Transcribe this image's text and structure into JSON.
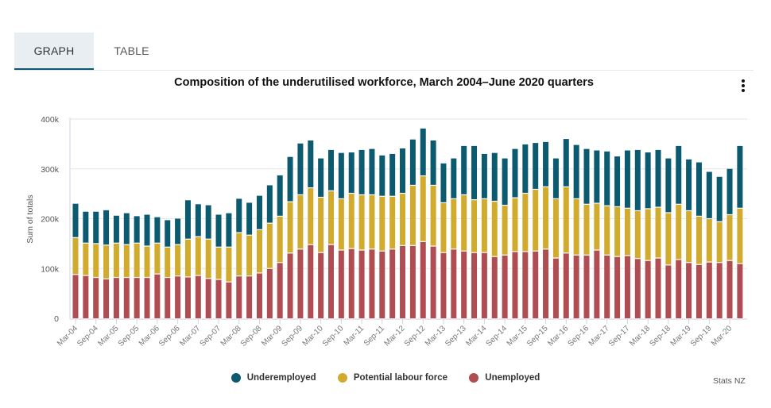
{
  "tabs": [
    {
      "label": "GRAPH",
      "active": true
    },
    {
      "label": "TABLE",
      "active": false
    }
  ],
  "menu_icon": "more-vertical-icon",
  "credit": "Stats NZ",
  "chart_data": {
    "type": "bar",
    "stacked": true,
    "title": "Composition of the underutilised workforce, March 2004–June 2020 quarters",
    "xlabel": "",
    "ylabel": "Sum of totals",
    "ylim": [
      0,
      400000
    ],
    "yticks": [
      {
        "value": 0,
        "label": "0"
      },
      {
        "value": 100000,
        "label": "100k"
      },
      {
        "value": 200000,
        "label": "200k"
      },
      {
        "value": 300000,
        "label": "300k"
      },
      {
        "value": 400000,
        "label": "400k"
      }
    ],
    "grid": true,
    "legend_position": "bottom",
    "categories": [
      "Mar-04",
      "Jun-04",
      "Sep-04",
      "Dec-04",
      "Mar-05",
      "Jun-05",
      "Sep-05",
      "Dec-05",
      "Mar-06",
      "Jun-06",
      "Sep-06",
      "Dec-06",
      "Mar-07",
      "Jun-07",
      "Sep-07",
      "Dec-07",
      "Mar-08",
      "Jun-08",
      "Sep-08",
      "Dec-08",
      "Mar-09",
      "Jun-09",
      "Sep-09",
      "Dec-09",
      "Mar-10",
      "Jun-10",
      "Sep-10",
      "Dec-10",
      "Mar-11",
      "Jun-11",
      "Sep-11",
      "Dec-11",
      "Mar-12",
      "Jun-12",
      "Sep-12",
      "Dec-12",
      "Mar-13",
      "Jun-13",
      "Sep-13",
      "Dec-13",
      "Mar-14",
      "Jun-14",
      "Sep-14",
      "Dec-14",
      "Mar-15",
      "Jun-15",
      "Sep-15",
      "Dec-15",
      "Mar-16",
      "Jun-16",
      "Sep-16",
      "Dec-16",
      "Mar-17",
      "Jun-17",
      "Sep-17",
      "Dec-17",
      "Mar-18",
      "Jun-18",
      "Sep-18",
      "Dec-18",
      "Mar-19",
      "Jun-19",
      "Sep-19",
      "Dec-19",
      "Mar-20",
      "Jun-20"
    ],
    "tick_labels": [
      "Mar-04",
      "Sep-04",
      "Mar-05",
      "Sep-05",
      "Mar-06",
      "Sep-06",
      "Mar-07",
      "Sep-07",
      "Mar-08",
      "Sep-08",
      "Mar-09",
      "Sep-09",
      "Mar-10",
      "Sep-10",
      "Mar-11",
      "Sep-11",
      "Mar-12",
      "Sep-12",
      "Mar-13",
      "Sep-13",
      "Mar-14",
      "Sep-14",
      "Mar-15",
      "Sep-15",
      "Mar-16",
      "Sep-16",
      "Mar-17",
      "Sep-17",
      "Mar-18",
      "Sep-18",
      "Mar-19",
      "Sep-19",
      "Mar-20"
    ],
    "series": [
      {
        "name": "Unemployed",
        "color": "#b04d52",
        "values": [
          88000,
          86000,
          82000,
          79000,
          82000,
          82000,
          82000,
          82000,
          89000,
          82000,
          85000,
          83000,
          86000,
          80000,
          78000,
          73000,
          85000,
          85000,
          91000,
          100000,
          112000,
          131000,
          139000,
          148000,
          132000,
          148000,
          137000,
          140000,
          137000,
          139000,
          135000,
          139000,
          146000,
          146000,
          154000,
          145000,
          132000,
          139000,
          135000,
          132000,
          132000,
          124000,
          127000,
          134000,
          134000,
          135000,
          139000,
          121000,
          131000,
          127000,
          127000,
          137000,
          127000,
          124000,
          126000,
          120000,
          116000,
          121000,
          107000,
          118000,
          112000,
          108000,
          113000,
          112000,
          116000,
          110000
        ]
      },
      {
        "name": "Potential labour force",
        "color": "#d1ab2e",
        "values": [
          74000,
          65000,
          68000,
          68000,
          69000,
          66000,
          69000,
          63000,
          62000,
          61000,
          63000,
          76000,
          78000,
          79000,
          65000,
          70000,
          87000,
          82000,
          87000,
          91000,
          93000,
          103000,
          109000,
          114000,
          111000,
          108000,
          103000,
          111000,
          111000,
          109000,
          110000,
          106000,
          105000,
          121000,
          132000,
          122000,
          100000,
          101000,
          113000,
          106000,
          108000,
          111000,
          100000,
          108000,
          117000,
          124000,
          125000,
          119000,
          133000,
          113000,
          102000,
          94000,
          99000,
          100000,
          95000,
          96000,
          104000,
          102000,
          105000,
          111000,
          104000,
          97000,
          87000,
          82000,
          92000,
          111000
        ]
      },
      {
        "name": "Underemployed",
        "color": "#0b5a70",
        "values": [
          68000,
          63000,
          64000,
          70000,
          55000,
          63000,
          54000,
          63000,
          52000,
          54000,
          52000,
          78000,
          65000,
          68000,
          65000,
          68000,
          68000,
          65000,
          68000,
          76000,
          82000,
          90000,
          103000,
          95000,
          78000,
          82000,
          92000,
          82000,
          90000,
          92000,
          82000,
          85000,
          90000,
          92000,
          95000,
          90000,
          79000,
          81000,
          98000,
          108000,
          90000,
          97000,
          94000,
          98000,
          98000,
          93000,
          90000,
          81000,
          96000,
          108000,
          111000,
          106000,
          109000,
          101000,
          116000,
          122000,
          113000,
          115000,
          109000,
          117000,
          103000,
          108000,
          94000,
          90000,
          92000,
          125000
        ]
      }
    ],
    "legend": [
      {
        "name": "Underemployed",
        "color": "#0b5a70"
      },
      {
        "name": "Potential labour force",
        "color": "#d1ab2e"
      },
      {
        "name": "Unemployed",
        "color": "#b04d52"
      }
    ]
  }
}
